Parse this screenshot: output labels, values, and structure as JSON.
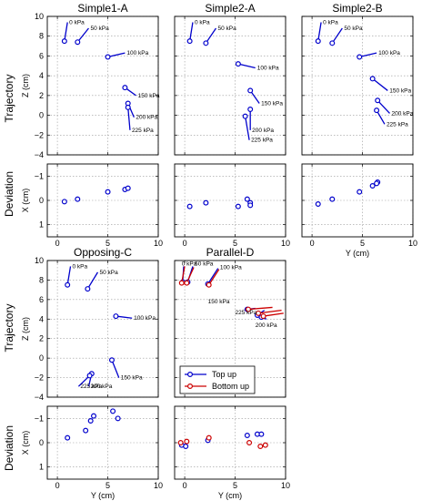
{
  "figure": {
    "row_labels": {
      "trajectory": "Trajectory",
      "deviation": "Deviation"
    },
    "legend": {
      "entries": [
        "Top up",
        "Bottom up"
      ],
      "placement": "lower-left of Parallel-D"
    }
  },
  "colors": {
    "top_up": "#0000cc",
    "bottom_up": "#cc0000",
    "grid": "#999999"
  },
  "chart_data": [
    {
      "type": "line",
      "panel": "Simple1-A",
      "title": "Simple1-A",
      "ylabel": "Z (cm)",
      "xlabel": "",
      "xlim": [
        -1,
        10
      ],
      "ylim": [
        -4,
        10
      ],
      "xticks": [
        0,
        5,
        10
      ],
      "yticks": [
        -4,
        -2,
        0,
        2,
        4,
        6,
        8,
        10
      ],
      "show_x_ticklabels": false,
      "show_y_ticklabels": true,
      "grid": true,
      "series": [
        {
          "name": "Top up",
          "points": [
            {
              "label": "0 kPa",
              "x": 0.7,
              "y": 7.5,
              "tip": [
                1.0,
                9.4
              ]
            },
            {
              "label": "50 kPa",
              "x": 2.0,
              "y": 7.4,
              "tip": [
                3.1,
                8.8
              ]
            },
            {
              "label": "100 kPa",
              "x": 5.0,
              "y": 5.9,
              "tip": [
                6.7,
                6.3
              ]
            },
            {
              "label": "150 kPa",
              "x": 6.7,
              "y": 2.8,
              "tip": [
                7.8,
                2.0
              ]
            },
            {
              "label": "200 kPa",
              "x": 7.0,
              "y": 1.2,
              "tip": [
                7.6,
                -0.2
              ]
            },
            {
              "label": "225 kPa",
              "x": 7.0,
              "y": 0.8,
              "tip": [
                7.2,
                -1.5
              ]
            }
          ]
        }
      ]
    },
    {
      "type": "line",
      "panel": "Simple2-A",
      "title": "Simple2-A",
      "ylabel": "",
      "xlabel": "",
      "xlim": [
        -1,
        10
      ],
      "ylim": [
        -4,
        10
      ],
      "xticks": [
        0,
        5,
        10
      ],
      "yticks": [
        -4,
        -2,
        0,
        2,
        4,
        6,
        8,
        10
      ],
      "show_x_ticklabels": false,
      "show_y_ticklabels": false,
      "grid": true,
      "series": [
        {
          "name": "Top up",
          "points": [
            {
              "label": "0 kPa",
              "x": 0.5,
              "y": 7.5,
              "tip": [
                0.8,
                9.4
              ]
            },
            {
              "label": "50 kPa",
              "x": 2.1,
              "y": 7.3,
              "tip": [
                3.1,
                8.8
              ]
            },
            {
              "label": "100 kPa",
              "x": 5.3,
              "y": 5.2,
              "tip": [
                7.0,
                4.8
              ]
            },
            {
              "label": "150 kPa",
              "x": 6.5,
              "y": 2.5,
              "tip": [
                7.4,
                1.2
              ]
            },
            {
              "label": "200 kPa",
              "x": 6.5,
              "y": 0.6,
              "tip": [
                6.5,
                -1.5
              ]
            },
            {
              "label": "225 kPa",
              "x": 6.0,
              "y": -0.1,
              "tip": [
                6.4,
                -2.5
              ]
            }
          ]
        }
      ]
    },
    {
      "type": "line",
      "panel": "Simple2-B",
      "title": "Simple2-B",
      "ylabel": "",
      "xlabel": "",
      "xlim": [
        -1,
        10
      ],
      "ylim": [
        -4,
        10
      ],
      "xticks": [
        0,
        5,
        10
      ],
      "yticks": [
        -4,
        -2,
        0,
        2,
        4,
        6,
        8,
        10
      ],
      "show_x_ticklabels": false,
      "show_y_ticklabels": false,
      "grid": true,
      "series": [
        {
          "name": "Top up",
          "points": [
            {
              "label": "0 kPa",
              "x": 0.6,
              "y": 7.5,
              "tip": [
                0.9,
                9.4
              ]
            },
            {
              "label": "50 kPa",
              "x": 2.0,
              "y": 7.3,
              "tip": [
                3.0,
                8.8
              ]
            },
            {
              "label": "100 kPa",
              "x": 4.7,
              "y": 5.9,
              "tip": [
                6.4,
                6.3
              ]
            },
            {
              "label": "150 kPa",
              "x": 6.0,
              "y": 3.7,
              "tip": [
                7.5,
                2.5
              ]
            },
            {
              "label": "200 kPa",
              "x": 6.5,
              "y": 1.5,
              "tip": [
                7.7,
                0.2
              ]
            },
            {
              "label": "225 kPa",
              "x": 6.4,
              "y": 0.5,
              "tip": [
                7.2,
                -0.9
              ]
            }
          ]
        }
      ]
    },
    {
      "type": "scatter",
      "panel": "Simple1-A deviation",
      "ylabel": "X (cm)",
      "xlabel": "",
      "xlim": [
        -1,
        10
      ],
      "ylim": [
        1.5,
        -1.5
      ],
      "xticks": [
        0,
        5,
        10
      ],
      "yticks": [
        -1,
        0,
        1
      ],
      "show_x_ticklabels": true,
      "show_y_ticklabels": true,
      "grid": true,
      "series": [
        {
          "name": "Top up",
          "points": [
            [
              0.7,
              0.05
            ],
            [
              2.0,
              -0.05
            ],
            [
              5.0,
              -0.35
            ],
            [
              6.7,
              -0.45
            ],
            [
              7.0,
              -0.5
            ]
          ]
        }
      ]
    },
    {
      "type": "scatter",
      "panel": "Simple2-A deviation",
      "ylabel": "",
      "xlabel": "",
      "xlim": [
        -1,
        10
      ],
      "ylim": [
        1.5,
        -1.5
      ],
      "xticks": [
        0,
        5,
        10
      ],
      "yticks": [
        -1,
        0,
        1
      ],
      "show_x_ticklabels": true,
      "show_y_ticklabels": false,
      "grid": true,
      "series": [
        {
          "name": "Top up",
          "points": [
            [
              0.5,
              0.25
            ],
            [
              2.1,
              0.1
            ],
            [
              5.3,
              0.25
            ],
            [
              6.2,
              -0.05
            ],
            [
              6.5,
              0.1
            ],
            [
              6.5,
              0.2
            ]
          ]
        }
      ]
    },
    {
      "type": "scatter",
      "panel": "Simple2-B deviation",
      "ylabel": "",
      "xlabel": "Y (cm)",
      "xlim": [
        -1,
        10
      ],
      "ylim": [
        1.5,
        -1.5
      ],
      "xticks": [
        0,
        5,
        10
      ],
      "yticks": [
        -1,
        0,
        1
      ],
      "show_x_ticklabels": true,
      "show_y_ticklabels": false,
      "grid": true,
      "series": [
        {
          "name": "Top up",
          "points": [
            [
              0.6,
              0.15
            ],
            [
              2.0,
              -0.05
            ],
            [
              4.7,
              -0.35
            ],
            [
              6.0,
              -0.6
            ],
            [
              6.5,
              -0.75
            ],
            [
              6.4,
              -0.7
            ]
          ]
        }
      ]
    },
    {
      "type": "line",
      "panel": "Opposing-C",
      "title": "Opposing-C",
      "ylabel": "Z (cm)",
      "xlabel": "",
      "xlim": [
        -1,
        10
      ],
      "ylim": [
        -4,
        10
      ],
      "xticks": [
        0,
        5,
        10
      ],
      "yticks": [
        -4,
        -2,
        0,
        2,
        4,
        6,
        8,
        10
      ],
      "show_x_ticklabels": false,
      "show_y_ticklabels": true,
      "grid": true,
      "series": [
        {
          "name": "Top up",
          "points": [
            {
              "label": "0 kPa",
              "x": 1.0,
              "y": 7.5,
              "tip": [
                1.3,
                9.4
              ]
            },
            {
              "label": "50 kPa",
              "x": 3.0,
              "y": 7.1,
              "tip": [
                4.0,
                8.8
              ]
            },
            {
              "label": "100 kPa",
              "x": 5.8,
              "y": 4.3,
              "tip": [
                7.4,
                4.1
              ]
            },
            {
              "label": "150 kPa",
              "x": 5.4,
              "y": -0.2,
              "tip": [
                6.1,
                -2.0
              ]
            },
            {
              "label": "200 kPa",
              "x": 3.4,
              "y": -1.6,
              "tip": [
                3.1,
                -2.9
              ]
            },
            {
              "label": "225 kPa",
              "x": 3.2,
              "y": -1.8,
              "tip": [
                2.1,
                -2.9
              ]
            }
          ]
        }
      ]
    },
    {
      "type": "line",
      "panel": "Parallel-D",
      "title": "Parallel-D",
      "ylabel": "",
      "xlabel": "",
      "xlim": [
        -1,
        10
      ],
      "ylim": [
        -4,
        10
      ],
      "xticks": [
        0,
        5,
        10
      ],
      "yticks": [
        -4,
        -2,
        0,
        2,
        4,
        6,
        8,
        10
      ],
      "show_x_ticklabels": false,
      "show_y_ticklabels": false,
      "grid": true,
      "series": [
        {
          "name": "Top up",
          "points": [
            {
              "label": "0 kPa",
              "x": -0.2,
              "y": 7.8,
              "tip": [
                -0.1,
                9.4
              ]
            },
            {
              "label": "50 kPa",
              "x": 0.3,
              "y": 7.8,
              "tip": [
                0.8,
                9.4
              ]
            },
            {
              "label": "100 kPa",
              "x": 2.3,
              "y": 7.6,
              "tip": [
                3.3,
                9.2
              ]
            },
            {
              "label": "150 kPa",
              "x": 6.2,
              "y": 5.0,
              "tip": [
                7.0,
                5.1
              ]
            },
            {
              "label": "225 kPa",
              "x": 7.2,
              "y": 4.4,
              "tip": [
                7.9,
                4.9
              ]
            },
            {
              "label": "200 kPa",
              "x": 7.6,
              "y": 4.2,
              "tip": [
                8.1,
                4.0
              ]
            }
          ]
        },
        {
          "name": "Bottom up",
          "points": [
            {
              "label": "",
              "x": -0.3,
              "y": 7.7,
              "tip": [
                0.0,
                9.4
              ]
            },
            {
              "label": "",
              "x": 0.2,
              "y": 7.7,
              "tip": [
                0.9,
                9.3
              ]
            },
            {
              "label": "",
              "x": 2.4,
              "y": 7.5,
              "tip": [
                3.4,
                9.1
              ]
            },
            {
              "label": "",
              "x": 6.3,
              "y": 5.0,
              "tip": [
                8.7,
                5.2
              ]
            },
            {
              "label": "",
              "x": 7.3,
              "y": 4.6,
              "tip": [
                9.6,
                4.9
              ]
            },
            {
              "label": "",
              "x": 7.8,
              "y": 4.3,
              "tip": [
                9.8,
                4.6
              ]
            }
          ]
        }
      ],
      "annotations": [
        {
          "text": "0 kPa",
          "x": -0.3,
          "y": 9.5
        },
        {
          "text": "50 kPa",
          "x": 1.0,
          "y": 9.5
        },
        {
          "text": "100 kPa",
          "x": 3.5,
          "y": 9.1
        },
        {
          "text": "150 kPa",
          "x": 2.3,
          "y": 5.6
        },
        {
          "text": "225 kPa",
          "x": 5.0,
          "y": 4.5
        },
        {
          "text": "200 kPa",
          "x": 7.0,
          "y": 3.2
        }
      ]
    },
    {
      "type": "scatter",
      "panel": "Opposing-C deviation",
      "ylabel": "X (cm)",
      "xlabel": "Y (cm)",
      "xlim": [
        -1,
        10
      ],
      "ylim": [
        1.5,
        -1.5
      ],
      "xticks": [
        0,
        5,
        10
      ],
      "yticks": [
        -1,
        0,
        1
      ],
      "show_x_ticklabels": true,
      "show_y_ticklabels": true,
      "grid": true,
      "series": [
        {
          "name": "Top up",
          "points": [
            [
              1.0,
              -0.2
            ],
            [
              2.8,
              -0.5
            ],
            [
              3.3,
              -0.9
            ],
            [
              3.6,
              -1.1
            ],
            [
              5.5,
              -1.3
            ],
            [
              6.0,
              -1.0
            ]
          ]
        }
      ]
    },
    {
      "type": "scatter",
      "panel": "Parallel-D deviation",
      "ylabel": "",
      "xlabel": "Y (cm)",
      "xlim": [
        -1,
        10
      ],
      "ylim": [
        1.5,
        -1.5
      ],
      "xticks": [
        0,
        5,
        10
      ],
      "yticks": [
        -1,
        0,
        1
      ],
      "show_x_ticklabels": true,
      "show_y_ticklabels": false,
      "grid": true,
      "series": [
        {
          "name": "Top up",
          "points": [
            [
              -0.3,
              0.1
            ],
            [
              0.1,
              0.15
            ],
            [
              2.3,
              -0.1
            ],
            [
              6.2,
              -0.3
            ],
            [
              7.2,
              -0.35
            ],
            [
              7.6,
              -0.35
            ]
          ]
        },
        {
          "name": "Bottom up",
          "points": [
            [
              -0.4,
              0.0
            ],
            [
              0.2,
              -0.05
            ],
            [
              2.4,
              -0.2
            ],
            [
              6.4,
              0.0
            ],
            [
              7.5,
              0.15
            ],
            [
              8.0,
              0.1
            ]
          ]
        }
      ]
    }
  ]
}
